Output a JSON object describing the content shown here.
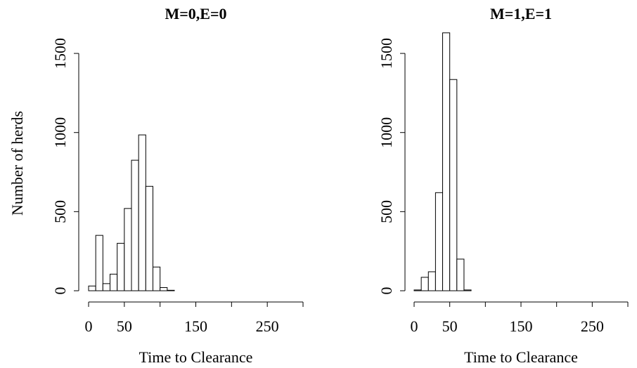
{
  "chart_data": [
    {
      "type": "histogram",
      "title": "M=0,E=0",
      "x_label": "Time to Clearance",
      "y_label": "Number of herds",
      "bins": [
        0,
        10,
        20,
        30,
        40,
        50,
        60,
        70,
        80,
        90,
        100,
        110,
        120,
        130,
        140,
        150,
        160,
        170,
        180,
        190,
        200,
        210,
        220,
        230,
        240,
        250,
        260,
        270,
        280,
        290,
        300,
        310,
        320
      ],
      "values": [
        30,
        350,
        45,
        105,
        300,
        520,
        825,
        985,
        660,
        150,
        20,
        3,
        0,
        0,
        0,
        0,
        0,
        0,
        0,
        0,
        0,
        0,
        0,
        0,
        0,
        0,
        0,
        0,
        0,
        0,
        0,
        0
      ],
      "color": "#ffffff",
      "xlim": [
        0,
        300
      ],
      "xticks": [
        0,
        50,
        {
          "value": 100,
          "label": null
        },
        150,
        {
          "value": 200,
          "label": null
        },
        250,
        {
          "value": 300,
          "label": null
        }
      ],
      "ylim": [
        0,
        1700
      ],
      "yticks": [
        0,
        500,
        1000,
        1500
      ]
    },
    {
      "type": "histogram",
      "title": "M=1,E=1",
      "x_label": "Time to Clearance",
      "bins": [
        0,
        10,
        20,
        30,
        40,
        50,
        60,
        70,
        80,
        90,
        100,
        110,
        120,
        130,
        140,
        150,
        160,
        170,
        180,
        190,
        200,
        210,
        220,
        230,
        240,
        250,
        260,
        270,
        280,
        290,
        300
      ],
      "values": [
        5,
        85,
        120,
        620,
        1630,
        1335,
        200,
        5,
        0,
        0,
        0,
        0,
        0,
        0,
        0,
        0,
        0,
        0,
        0,
        0,
        0,
        0,
        0,
        0,
        0,
        0,
        0,
        0,
        0,
        0
      ],
      "color": "#ffffff",
      "xlim": [
        0,
        300
      ],
      "xticks": [
        0,
        50,
        {
          "value": 100,
          "label": null
        },
        150,
        {
          "value": 200,
          "label": null
        },
        250,
        {
          "value": 300,
          "label": null
        }
      ],
      "ylim": [
        0,
        1700
      ],
      "yticks": [
        0,
        500,
        1000,
        1500
      ]
    }
  ]
}
